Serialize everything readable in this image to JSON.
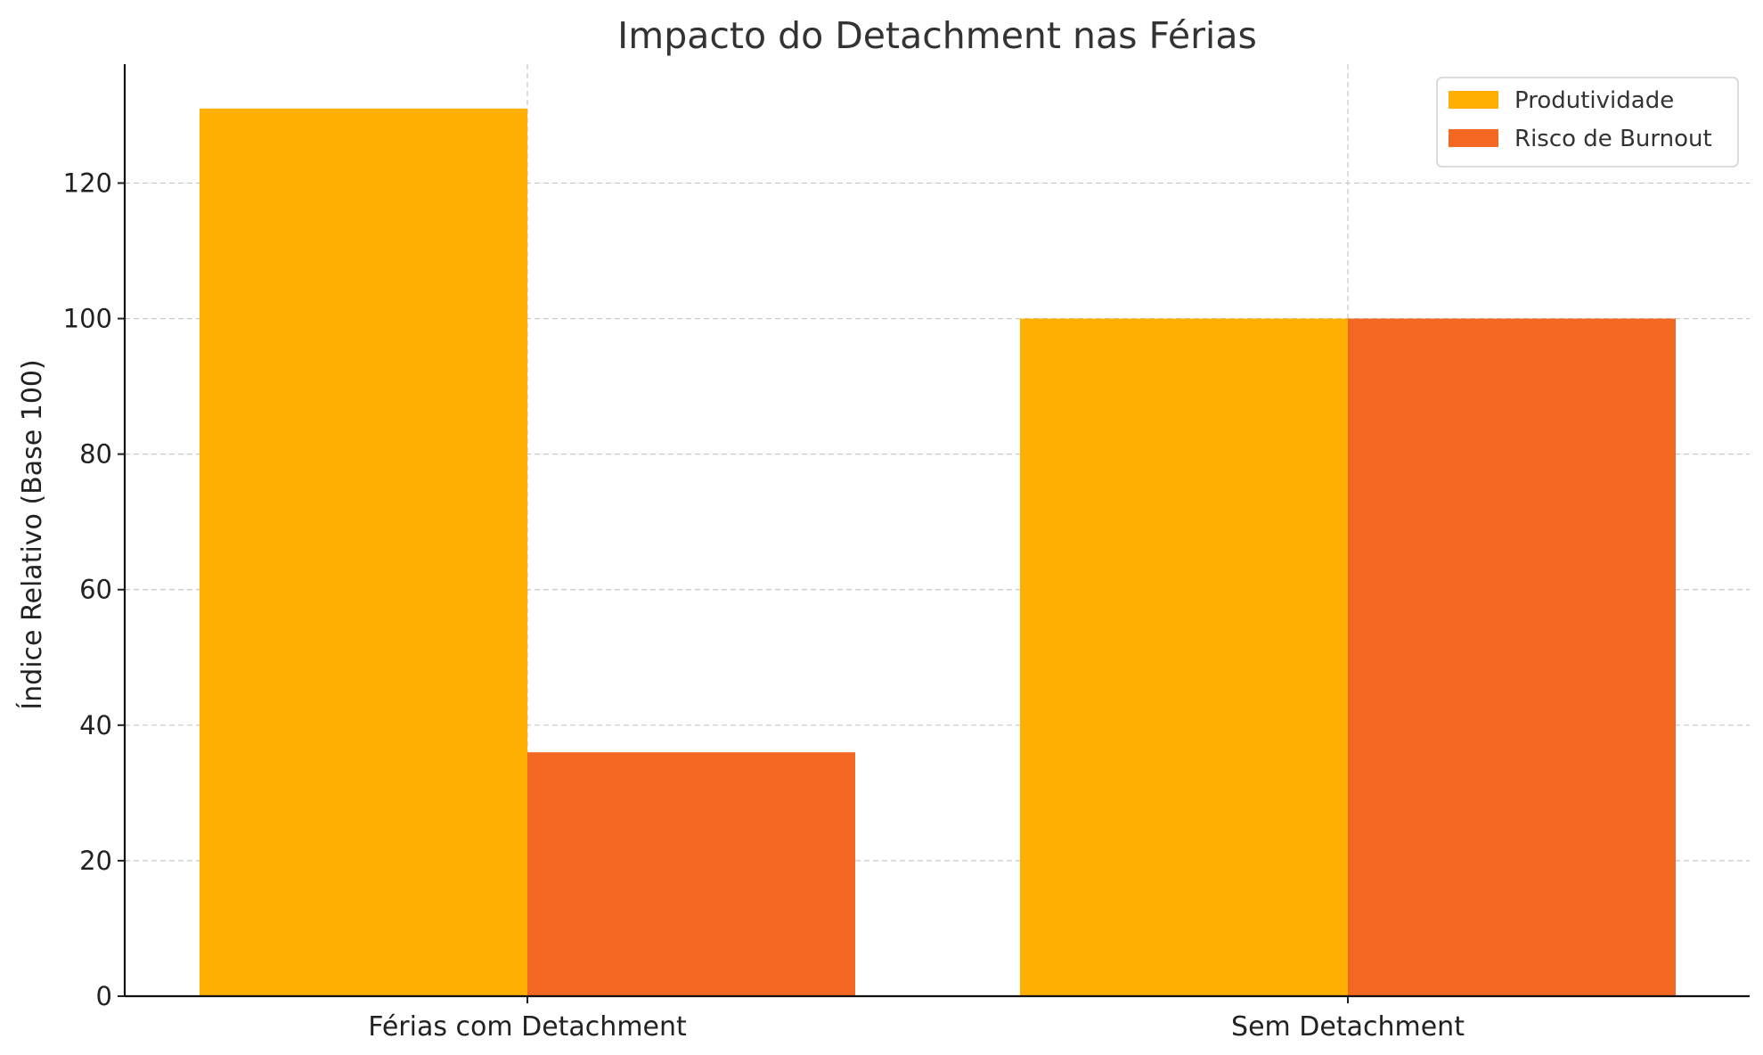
{
  "chart_data": {
    "type": "bar",
    "title": "Impacto do Detachment nas Férias",
    "xlabel": "",
    "ylabel": "Índice Relativo (Base 100)",
    "categories": [
      "Férias com Detachment",
      "Sem Detachment"
    ],
    "series": [
      {
        "name": "Produtividade",
        "values": [
          131,
          100
        ],
        "color": "#FFAE02"
      },
      {
        "name": "Risco de Burnout",
        "values": [
          36,
          100
        ],
        "color": "#F26822"
      }
    ],
    "ylim": [
      0,
      137.55
    ],
    "yticks": [
      0,
      20,
      40,
      60,
      80,
      100,
      120
    ],
    "grid": true,
    "legend_position": "top-right"
  }
}
